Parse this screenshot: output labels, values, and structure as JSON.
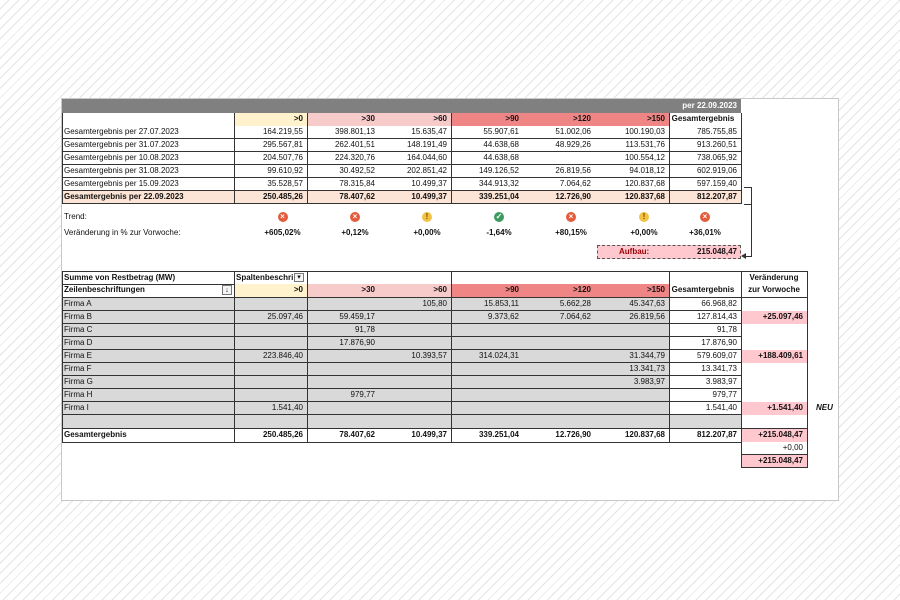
{
  "top_table": {
    "date_label": "per 22.09.2023",
    "headers": [
      ">0",
      ">30",
      ">60",
      ">90",
      ">120",
      ">150",
      "Gesamtergebnis"
    ],
    "rows": [
      {
        "label": "Gesamtergebnis per 27.07.2023",
        "values": [
          "164.219,55",
          "398.801,13",
          "15.635,47",
          "55.907,61",
          "51.002,06",
          "100.190,03",
          "785.755,85"
        ]
      },
      {
        "label": "Gesamtergebnis per 31.07.2023",
        "values": [
          "295.567,81",
          "262.401,51",
          "148.191,49",
          "44.638,68",
          "48.929,26",
          "113.531,76",
          "913.260,51"
        ]
      },
      {
        "label": "Gesamtergebnis per 10.08.2023",
        "values": [
          "204.507,76",
          "224.320,76",
          "164.044,60",
          "44.638,68",
          "",
          "100.554,12",
          "738.065,92"
        ]
      },
      {
        "label": "Gesamtergebnis per 31.08.2023",
        "values": [
          "99.610,92",
          "30.492,52",
          "202.851,42",
          "149.126,52",
          "26.819,56",
          "94.018,12",
          "602.919,06"
        ]
      },
      {
        "label": "Gesamtergebnis per 15.09.2023",
        "values": [
          "35.528,57",
          "78.315,84",
          "10.499,37",
          "344.913,32",
          "7.064,62",
          "120.837,68",
          "597.159,40"
        ]
      }
    ],
    "current_row": {
      "label": "Gesamtergebnis per 22.09.2023",
      "values": [
        "250.485,26",
        "78.407,62",
        "10.499,37",
        "339.251,04",
        "12.726,90",
        "120.837,68",
        "812.207,87"
      ]
    },
    "trend_label": "Trend:",
    "trend_icons": [
      "x-circle-icon",
      "x-circle-icon",
      "exclamation-circle-icon",
      "check-circle-icon",
      "x-circle-icon",
      "exclamation-circle-icon",
      "x-circle-icon"
    ],
    "change_label": "Veränderung in % zur Vorwoche:",
    "changes": [
      "+605,02%",
      "+0,12%",
      "+0,00%",
      "-1,64%",
      "+80,15%",
      "+0,00%",
      "+36,01%"
    ],
    "aufbau_label": "Aufbau:",
    "aufbau_value": "215.048,47"
  },
  "pivot": {
    "title": "Summe von Restbetrag (MW)",
    "col_header_label": "Spaltenbeschri",
    "row_header_label": "Zeilenbeschriftungen",
    "headers": [
      ">0",
      ">30",
      ">60",
      ">90",
      ">120",
      ">150",
      "Gesamtergebnis"
    ],
    "change_header_1": "Veränderung",
    "change_header_2": "zur Vorwoche",
    "rows": [
      {
        "label": "Firma A",
        "values": [
          "",
          "",
          "105,80",
          "15.853,11",
          "5.662,28",
          "45.347,63",
          "66.968,82"
        ],
        "change": ""
      },
      {
        "label": "Firma B",
        "values": [
          "25.097,46",
          "59.459,17",
          "",
          "9.373,62",
          "7.064,62",
          "26.819,56",
          "127.814,43"
        ],
        "change": "+25.097,46"
      },
      {
        "label": "Firma C",
        "values": [
          "",
          "91,78",
          "",
          "",
          "",
          "",
          "91,78"
        ],
        "change": ""
      },
      {
        "label": "Firma D",
        "values": [
          "",
          "17.876,90",
          "",
          "",
          "",
          "",
          "17.876,90"
        ],
        "change": ""
      },
      {
        "label": "Firma E",
        "values": [
          "223.846,40",
          "",
          "10.393,57",
          "314.024,31",
          "",
          "31.344,79",
          "579.609,07"
        ],
        "change": "+188.409,61"
      },
      {
        "label": "Firma F",
        "values": [
          "",
          "",
          "",
          "",
          "",
          "13.341,73",
          "13.341,73"
        ],
        "change": ""
      },
      {
        "label": "Firma G",
        "values": [
          "",
          "",
          "",
          "",
          "",
          "3.983,97",
          "3.983,97"
        ],
        "change": ""
      },
      {
        "label": "Firma H",
        "values": [
          "",
          "979,77",
          "",
          "",
          "",
          "",
          "979,77"
        ],
        "change": ""
      },
      {
        "label": "Firma I",
        "values": [
          "1.541,40",
          "",
          "",
          "",
          "",
          "",
          "1.541,40"
        ],
        "change": "+1.541,40",
        "note": "NEU"
      }
    ],
    "total": {
      "label": "Gesamtergebnis",
      "values": [
        "250.485,26",
        "78.407,62",
        "10.499,37",
        "339.251,04",
        "12.726,90",
        "120.837,68",
        "812.207,87"
      ],
      "change": "+215.048,47"
    },
    "extra_changes": [
      "+0,00",
      "+215.048,47"
    ]
  },
  "colors": {
    "header_gray": "#808080",
    "yellow": "#fff2cc",
    "pink_light": "#f8cbcb",
    "pink_mid": "#f4a6a6",
    "red": "#ef8585",
    "row_gray": "#d9d9d9",
    "current_row": "#fce4d6",
    "change_pink": "#ffc7ce"
  }
}
